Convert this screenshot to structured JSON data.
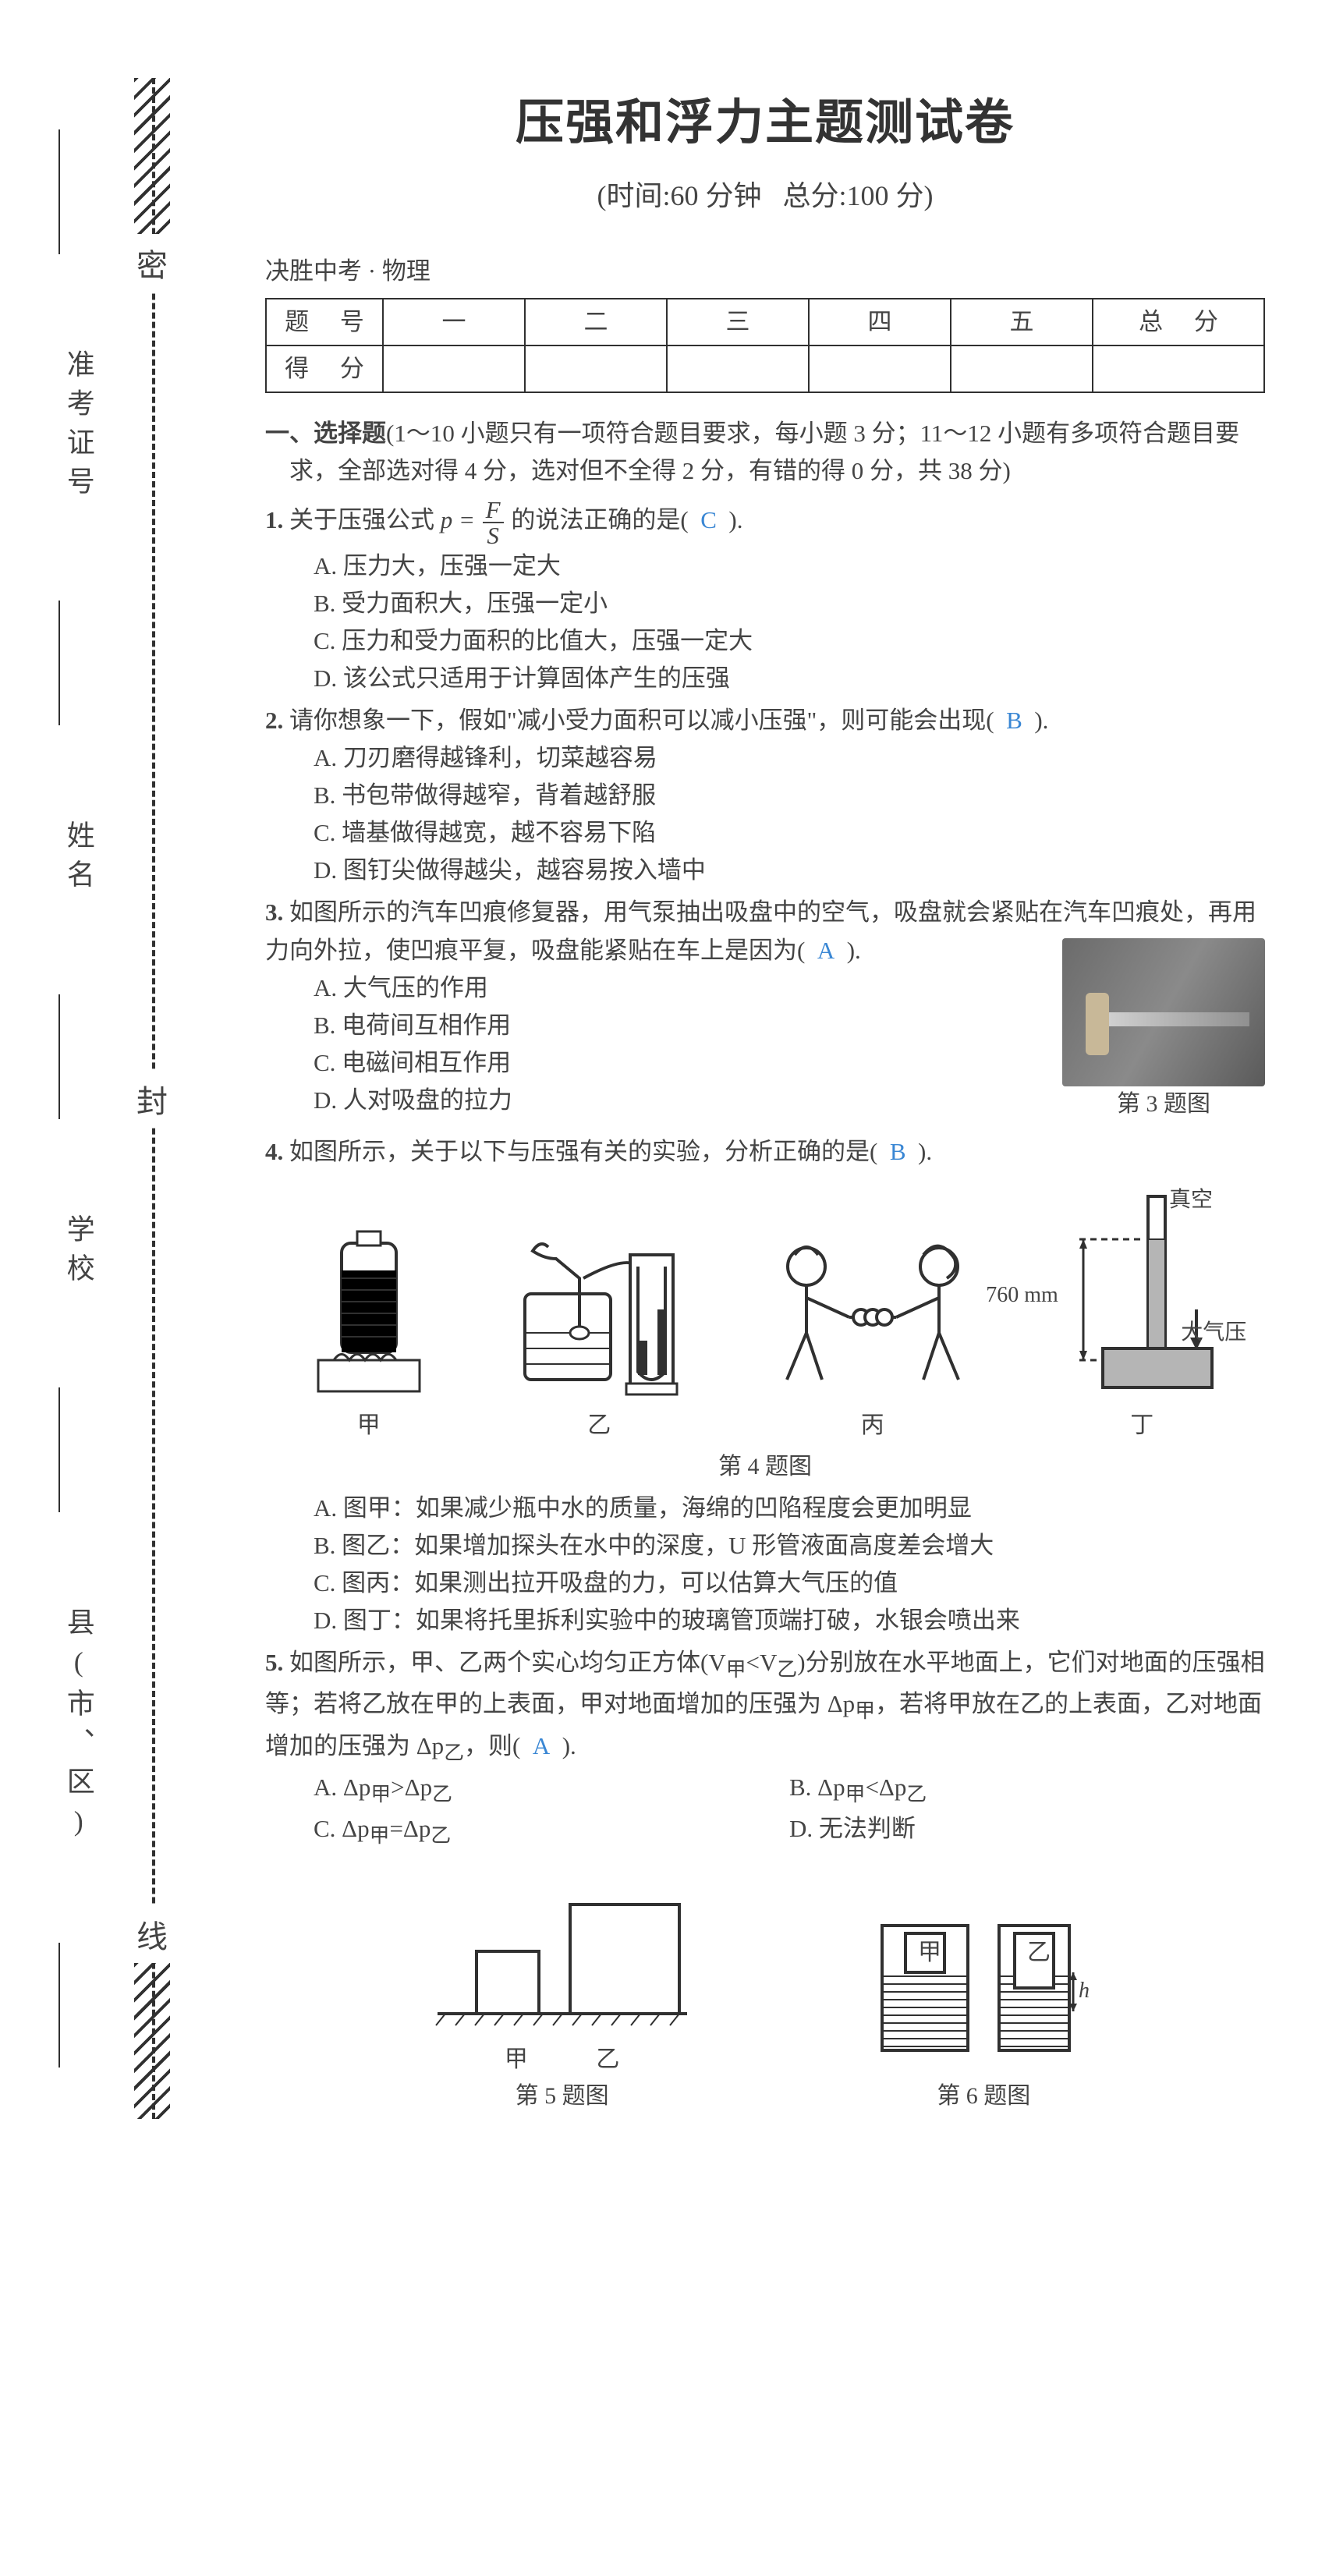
{
  "title": "压强和浮力主题测试卷",
  "subtitle_time": "(时间:60 分钟",
  "subtitle_score": "总分:100 分)",
  "booktitle": "决胜中考 · 物理",
  "score_table": {
    "headers": [
      "题  号",
      "一",
      "二",
      "三",
      "四",
      "五",
      "总  分"
    ],
    "row2_label": "得  分"
  },
  "section1": {
    "label": "一、选择题",
    "desc": "(1～10 小题只有一项符合题目要求，每小题 3 分；11～12 小题有多项符合题目要求，全部选对得 4 分，选对但不全得 2 分，有错的得 0 分，共 38 分)"
  },
  "q1": {
    "num": "1.",
    "stem_a": "关于压强公式",
    "stem_b": "的说法正确的是(",
    "ans": "C",
    "stem_c": ").",
    "A": "A. 压力大，压强一定大",
    "B": "B. 受力面积大，压强一定小",
    "C": "C. 压力和受力面积的比值大，压强一定大",
    "D": "D. 该公式只适用于计算固体产生的压强"
  },
  "q2": {
    "num": "2.",
    "stem": "请你想象一下，假如\"减小受力面积可以减小压强\"，则可能会出现(",
    "ans": "B",
    "stem_c": ").",
    "A": "A. 刀刃磨得越锋利，切菜越容易",
    "B": "B. 书包带做得越窄，背着越舒服",
    "C": "C. 墙基做得越宽，越不容易下陷",
    "D": "D. 图钉尖做得越尖，越容易按入墙中"
  },
  "q3": {
    "num": "3.",
    "stem": "如图所示的汽车凹痕修复器，用气泵抽出吸盘中的空气，吸盘就会紧贴在汽车凹痕处，再用力向外拉，使凹痕平复，吸盘能紧贴在车上是因为(",
    "ans": "A",
    "stem_c": ").",
    "A": "A. 大气压的作用",
    "B": "B. 电荷间互相作用",
    "C": "C. 电磁间相互作用",
    "D": "D. 人对吸盘的拉力",
    "figcap": "第 3 题图"
  },
  "q4": {
    "num": "4.",
    "stem": "如图所示，关于以下与压强有关的实验，分析正确的是(",
    "ans": "B",
    "stem_c": ").",
    "labels": {
      "a": "甲",
      "b": "乙",
      "c": "丙",
      "d": "丁"
    },
    "figcap": "第 4 题图",
    "annot_vac": "真空",
    "annot_760": "760 mm",
    "annot_atm": "大气压",
    "A": "A. 图甲：如果减少瓶中水的质量，海绵的凹陷程度会更加明显",
    "B": "B. 图乙：如果增加探头在水中的深度，U 形管液面高度差会增大",
    "C": "C. 图丙：如果测出拉开吸盘的力，可以估算大气压的值",
    "D": "D. 图丁：如果将托里拆利实验中的玻璃管顶端打破，水银会喷出来"
  },
  "q5": {
    "num": "5.",
    "stem_a": "如图所示，甲、乙两个实心均匀正方体(V",
    "sub1": "甲",
    "stem_b": "<V",
    "sub2": "乙",
    "stem_c": ")分别放在水平地面上，它们对地面的压强相等；若将乙放在甲的上表面，甲对地面增加的压强为 Δp",
    "stem_d": "，若将甲放在乙的上表面，乙对地面增加的压强为 Δp",
    "stem_e": "，则(",
    "ans": "A",
    "stem_f": ").",
    "A_pre": "A. Δp",
    "A_mid": ">Δp",
    "B_pre": "B. Δp",
    "B_mid": "<Δp",
    "C_pre": "C. Δp",
    "C_mid": "=Δp",
    "D": "D. 无法判断",
    "figcap5": "第 5 题图",
    "figcap6": "第 6 题图",
    "fig_l_a": "甲",
    "fig_l_b": "乙",
    "fig_r_a": "甲",
    "fig_r_b": "乙",
    "fig_h": "h"
  },
  "margin": {
    "labels": [
      "县(市、区)",
      "学校",
      "姓名",
      "准考证号"
    ],
    "seal": [
      "密",
      "封",
      "线"
    ]
  },
  "colors": {
    "text": "#444444",
    "answer": "#3a87d4",
    "border": "#303030",
    "watermark": "#bfbfbf"
  }
}
